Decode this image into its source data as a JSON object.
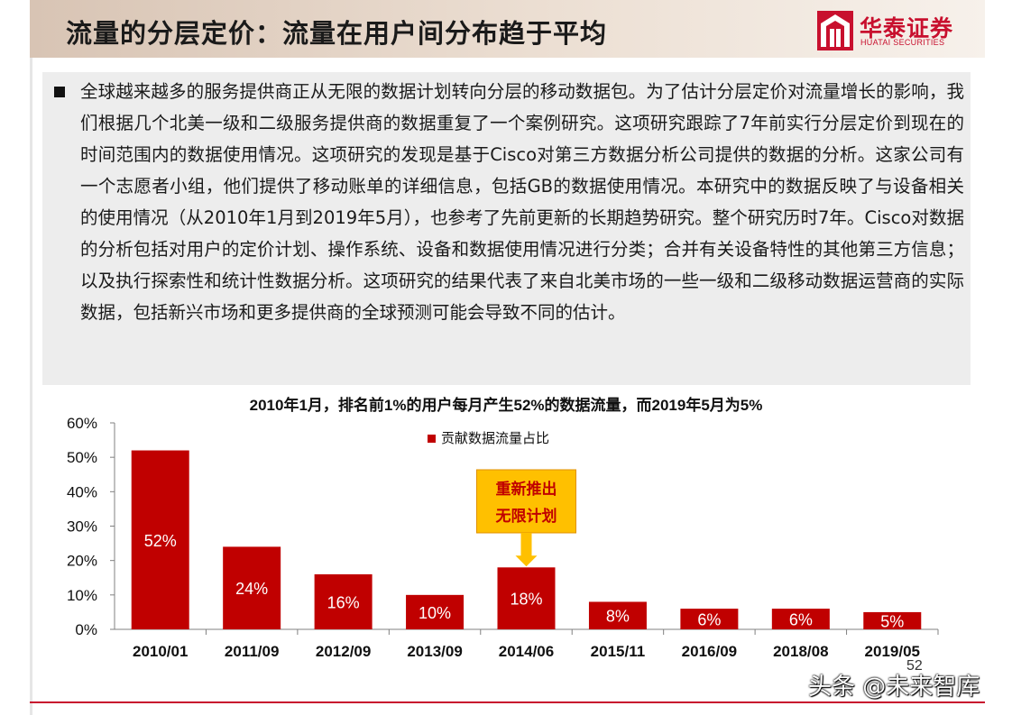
{
  "header": {
    "title": "流量的分层定价：流量在用户间分布趋于平均",
    "logo_name": "华泰证券",
    "logo_subtitle": "HUATAI SECURITIES",
    "colors": {
      "brand": "#c8102e",
      "header_band": "#e6d6c9"
    }
  },
  "body_text": {
    "paragraph": "全球越来越多的服务提供商正从无限的数据计划转向分层的移动数据包。为了估计分层定价对流量增长的影响，我们根据几个北美一级和二级服务提供商的数据重复了一个案例研究。这项研究跟踪了7年前实行分层定价到现在的时间范围内的数据使用情况。这项研究的发现是基于Cisco对第三方数据分析公司提供的数据的分析。这家公司有一个志愿者小组，他们提供了移动账单的详细信息，包括GB的数据使用情况。本研究中的数据反映了与设备相关的使用情况（从2010年1月到2019年5月），也参考了先前更新的长期趋势研究。整个研究历时7年。Cisco对数据的分析包括对用户的定价计划、操作系统、设备和数据使用情况进行分类；合并有关设备特性的其他第三方信息；以及执行探索性和统计性数据分析。这项研究的结果代表了来自北美市场的一些一级和二级移动数据运营商的实际数据，包括新兴市场和更多提供商的全球预测可能会导致不同的估计。"
  },
  "chart_data": {
    "type": "bar",
    "title": "2010年1月，排名前1%的用户每月产生52%的数据流量，而2019年5月为5%",
    "categories": [
      "2010/01",
      "2011/09",
      "2012/09",
      "2013/09",
      "2014/06",
      "2015/11",
      "2016/09",
      "2018/08",
      "2019/05"
    ],
    "series": [
      {
        "name": "贡献数据流量占比",
        "values": [
          52,
          24,
          16,
          10,
          18,
          8,
          6,
          6,
          5
        ],
        "color": "#c00000"
      }
    ],
    "data_labels": [
      "52%",
      "24%",
      "16%",
      "10%",
      "18%",
      "8%",
      "6%",
      "6%",
      "5%"
    ],
    "y_ticks": [
      "0%",
      "10%",
      "20%",
      "30%",
      "40%",
      "50%",
      "60%"
    ],
    "ylim": [
      0,
      60
    ],
    "xlabel": "",
    "ylabel": "",
    "legend_position": "top-center",
    "grid": false,
    "annotation": {
      "lines": [
        "重新推出",
        "无限计划"
      ],
      "category": "2014/06",
      "box_color": "#ffc000",
      "text_color": "#c00000",
      "border_color": "#e09000"
    }
  },
  "footer": {
    "page_number": "52",
    "watermark": "头条 @未来智库"
  }
}
